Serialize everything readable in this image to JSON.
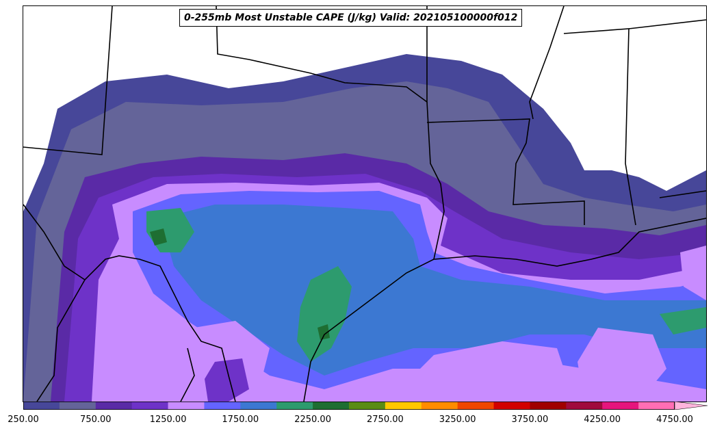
{
  "title": "0-255mb Most Unstable CAPE (J/kg) Valid: 202105100000f012",
  "colorbar": {
    "tick_labels": [
      "250.00",
      "750.00",
      "1250.00",
      "1750.00",
      "2250.00",
      "2750.00",
      "3250.00",
      "3750.00",
      "4250.00",
      "4750.00"
    ],
    "levels": [
      250,
      500,
      750,
      1000,
      1250,
      1500,
      1750,
      2000,
      2250,
      2500,
      2750,
      3000,
      3250,
      3500,
      3750,
      4000,
      4250,
      4500,
      4750,
      5000
    ],
    "colors": [
      "#474799",
      "#646499",
      "#5a2aa6",
      "#6e32c8",
      "#c88cff",
      "#6464ff",
      "#3c78d2",
      "#2d9b6e",
      "#1e6e32",
      "#5a8c14",
      "#ffc800",
      "#ff8c00",
      "#f04600",
      "#d20000",
      "#a00000",
      "#a00a3c",
      "#e6147d",
      "#ff6eb4",
      "#ffb4dc"
    ],
    "extend": "max"
  }
}
